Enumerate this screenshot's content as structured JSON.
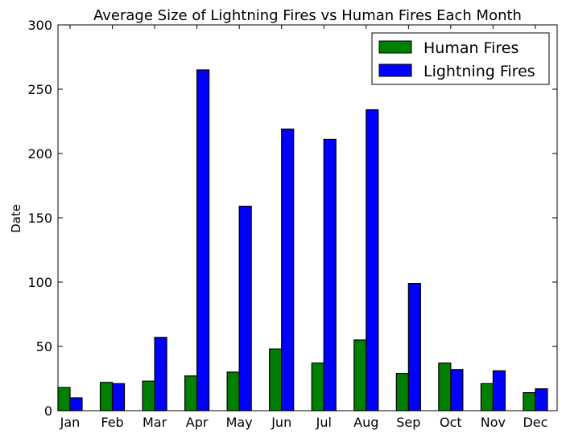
{
  "chart_data": {
    "type": "bar",
    "title": "Average Size of Lightning Fires vs Human Fires Each Month",
    "xlabel": "",
    "ylabel": "Date",
    "categories": [
      "Jan",
      "Feb",
      "Mar",
      "Apr",
      "May",
      "Jun",
      "Jul",
      "Aug",
      "Sep",
      "Oct",
      "Nov",
      "Dec"
    ],
    "series": [
      {
        "name": "Human Fires",
        "color": "#008000",
        "values": [
          18,
          22,
          23,
          27,
          30,
          48,
          37,
          55,
          29,
          37,
          21,
          14
        ]
      },
      {
        "name": "Lightning Fires",
        "color": "#0000ff",
        "values": [
          10,
          21,
          57,
          265,
          159,
          219,
          211,
          234,
          99,
          32,
          31,
          17
        ]
      }
    ],
    "ylim": [
      0,
      300
    ],
    "yticks": [
      0,
      50,
      100,
      150,
      200,
      250,
      300
    ],
    "grid": false,
    "legend": "top-right"
  }
}
